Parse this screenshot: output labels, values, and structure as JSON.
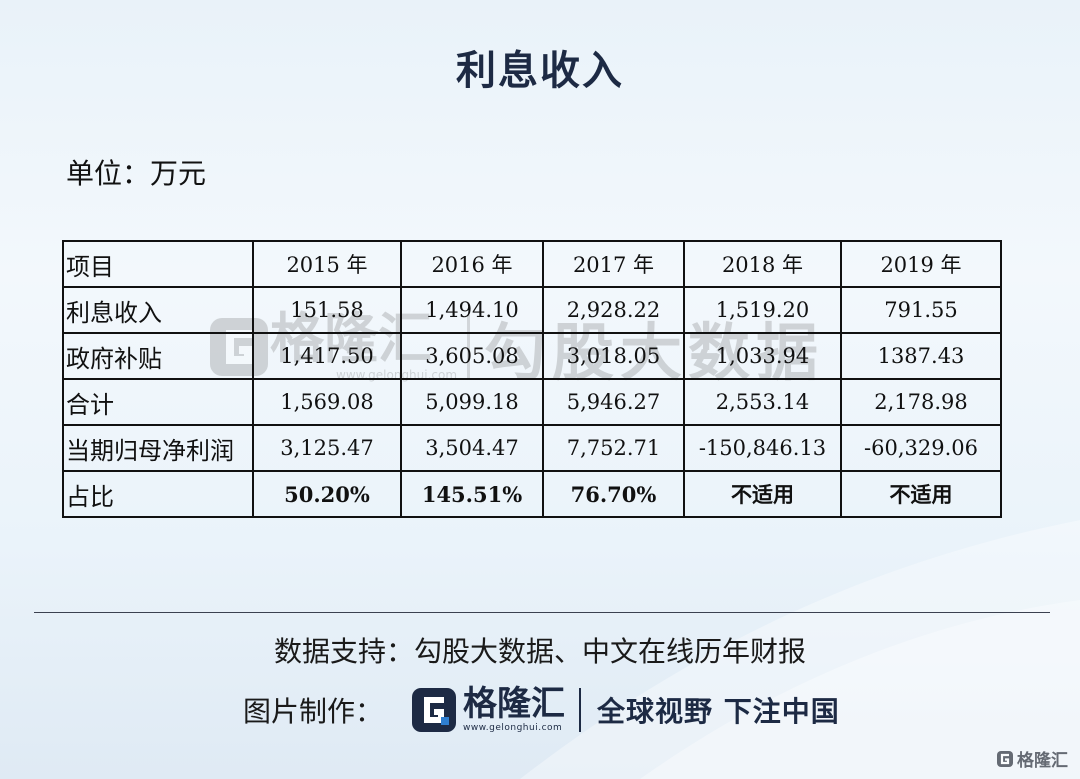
{
  "title": "利息收入",
  "unit": "单位：万元",
  "watermark": {
    "brand": "格隆汇",
    "url": "www.gelonghui.com",
    "slogan": "勾股大数据"
  },
  "table": {
    "header_label": "项目",
    "years": [
      "2015 年",
      "2016 年",
      "2017 年",
      "2018 年",
      "2019 年"
    ],
    "rows": [
      {
        "label": "利息收入",
        "values": [
          "151.58",
          "1,494.10",
          "2,928.22",
          "1,519.20",
          "791.55"
        ]
      },
      {
        "label": "政府补贴",
        "values": [
          "1,417.50",
          "3,605.08",
          "3,018.05",
          "1,033.94",
          "1387.43"
        ]
      },
      {
        "label": "合计",
        "values": [
          "1,569.08",
          "5,099.18",
          "5,946.27",
          "2,553.14",
          "2,178.98"
        ]
      },
      {
        "label": "当期归母净利润",
        "values": [
          "3,125.47",
          "3,504.47",
          "7,752.71",
          "-150,846.13",
          "-60,329.06"
        ]
      },
      {
        "label": "占比",
        "values": [
          "50.20%",
          "145.51%",
          "76.70%",
          "不适用",
          "不适用"
        ]
      }
    ]
  },
  "footer": {
    "source": "数据支持：勾股大数据、中文在线历年财报",
    "maker_label": "图片制作：",
    "brand_name": "格隆汇",
    "brand_url": "www.gelonghui.com",
    "slogan": "全球视野 下注中国",
    "corner_brand": "格隆汇"
  },
  "colors": {
    "brand_navy": "#1d2a44",
    "background_top": "#e9f2f9",
    "background_bottom": "#dfeaf4"
  },
  "icons": {
    "brand_logo": "gelonghui-logo-icon",
    "corner_logo": "gelonghui-corner-logo-icon"
  }
}
